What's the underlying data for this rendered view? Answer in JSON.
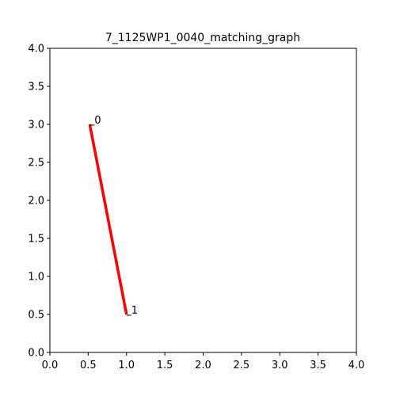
{
  "chart_data": {
    "type": "line",
    "title": "7_1125WP1_0040_matching_graph",
    "xlabel": "",
    "ylabel": "",
    "xlim": [
      0.0,
      4.0
    ],
    "ylim": [
      0.0,
      4.0
    ],
    "x_ticks": [
      "0.0",
      "0.5",
      "1.0",
      "1.5",
      "2.0",
      "2.5",
      "3.0",
      "3.5",
      "4.0"
    ],
    "y_ticks": [
      "0.0",
      "0.5",
      "1.0",
      "1.5",
      "2.0",
      "2.5",
      "3.0",
      "3.5",
      "4.0"
    ],
    "grid": false,
    "nodes": [
      {
        "label": "0",
        "x": 0.52,
        "y": 3.0
      },
      {
        "label": "1",
        "x": 1.0,
        "y": 0.5
      }
    ],
    "series": [
      {
        "color": "#ff0000",
        "x": [
          0.52,
          1.0
        ],
        "y": [
          3.0,
          0.5
        ]
      }
    ]
  }
}
